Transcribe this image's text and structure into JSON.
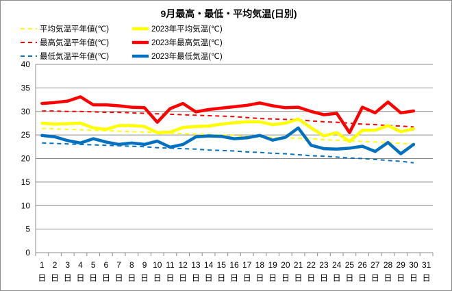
{
  "chart_data": {
    "type": "line",
    "title": "9月最高・最低・平均気温(日別)",
    "xlabel": "",
    "ylabel": "",
    "ylim": [
      0,
      40
    ],
    "yticks": [
      0,
      5,
      10,
      15,
      20,
      25,
      30,
      35,
      40
    ],
    "grid": true,
    "legend_position": "top",
    "x": [
      1,
      2,
      3,
      4,
      5,
      6,
      7,
      8,
      9,
      10,
      11,
      12,
      13,
      14,
      15,
      16,
      17,
      18,
      19,
      20,
      21,
      22,
      23,
      24,
      25,
      26,
      27,
      28,
      29,
      30,
      31
    ],
    "x_suffix": "日",
    "series": [
      {
        "name": "平均気温平年値(℃)",
        "style": "dashed",
        "color": "#ffff00",
        "values": [
          26.4,
          26.3,
          26.2,
          26.1,
          26.0,
          25.9,
          25.8,
          25.7,
          25.6,
          25.5,
          25.4,
          25.3,
          25.2,
          25.1,
          25.0,
          24.9,
          24.7,
          24.6,
          24.5,
          24.4,
          24.3,
          24.2,
          24.0,
          23.9,
          23.8,
          23.6,
          23.5,
          23.4,
          23.2,
          23.1,
          null
        ]
      },
      {
        "name": "2023年平均気温(℃)",
        "style": "solid",
        "color": "#ffff00",
        "values": [
          27.5,
          27.3,
          27.4,
          27.5,
          26.5,
          26.2,
          27.0,
          27.0,
          26.8,
          25.5,
          25.6,
          26.6,
          26.8,
          26.9,
          27.3,
          27.6,
          27.8,
          27.8,
          27.2,
          27.5,
          28.4,
          26.5,
          24.8,
          25.5,
          23.6,
          26.0,
          26.0,
          27.0,
          25.7,
          26.3,
          null
        ]
      },
      {
        "name": "最高気温平年値(℃)",
        "style": "dashed",
        "color": "#ff0000",
        "values": [
          30.1,
          30.1,
          30.0,
          30.0,
          29.9,
          29.8,
          29.8,
          29.7,
          29.6,
          29.5,
          29.4,
          29.3,
          29.2,
          29.1,
          29.0,
          28.9,
          28.7,
          28.5,
          28.4,
          28.3,
          28.2,
          28.0,
          27.8,
          27.7,
          27.5,
          27.3,
          27.2,
          27.0,
          26.9,
          26.7,
          null
        ]
      },
      {
        "name": "2023年最高気温(℃)",
        "style": "solid",
        "color": "#ff0000",
        "values": [
          31.7,
          31.9,
          32.2,
          33.1,
          31.4,
          31.4,
          31.2,
          30.9,
          30.8,
          27.7,
          30.6,
          31.7,
          29.9,
          30.4,
          30.7,
          31.0,
          31.3,
          31.8,
          31.2,
          30.8,
          30.9,
          30.0,
          29.3,
          29.6,
          25.5,
          30.9,
          29.7,
          32.0,
          29.7,
          30.1,
          null
        ]
      },
      {
        "name": "最低気温平年値(℃)",
        "style": "dashed",
        "color": "#0070c0",
        "values": [
          23.3,
          23.2,
          23.1,
          23.0,
          22.9,
          22.8,
          22.7,
          22.6,
          22.5,
          22.3,
          22.2,
          22.1,
          22.0,
          21.8,
          21.7,
          21.6,
          21.4,
          21.3,
          21.1,
          21.0,
          20.8,
          20.6,
          20.5,
          20.3,
          20.1,
          20.0,
          19.8,
          19.6,
          19.4,
          19.1,
          null
        ]
      },
      {
        "name": "2023年最低気温(℃)",
        "style": "solid",
        "color": "#0070c0",
        "values": [
          24.9,
          24.6,
          23.8,
          23.3,
          24.2,
          23.5,
          23.0,
          23.3,
          23.0,
          23.7,
          22.4,
          23.0,
          24.6,
          24.8,
          24.7,
          24.2,
          24.4,
          24.9,
          23.9,
          24.5,
          26.5,
          22.8,
          22.1,
          22.0,
          22.2,
          22.6,
          21.5,
          23.4,
          21.0,
          23.0,
          null
        ]
      }
    ]
  }
}
